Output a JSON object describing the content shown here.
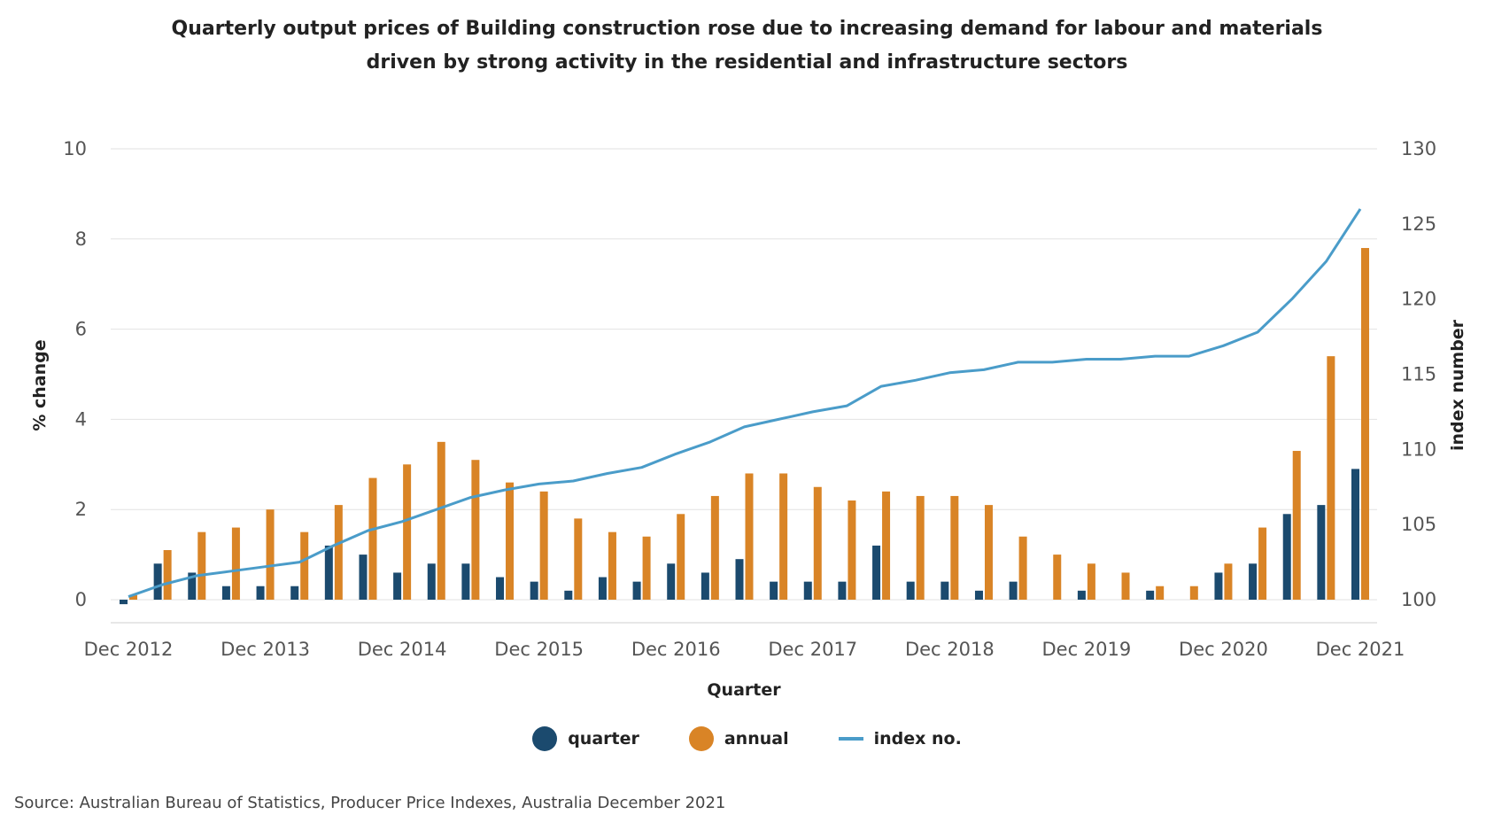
{
  "colors": {
    "quarter": "#1b4a6e",
    "annual": "#d98426",
    "index": "#4a9cc9",
    "grid": "#e2e2e2",
    "axis_text": "#555555"
  },
  "legend": {
    "quarter": "quarter",
    "annual": "annual",
    "index": "index no."
  },
  "source": "Source: Australian Bureau of Statistics, Producer Price Indexes, Australia December 2021",
  "chart_data": {
    "type": "bar",
    "title_line1": "Quarterly output prices of Building construction rose due to increasing demand for labour and materials",
    "title_line2": "driven by strong activity in the residential and infrastructure sectors",
    "xlabel": "Quarter",
    "ylabel": "% change",
    "y2label": "index number",
    "ylim": [
      0,
      10
    ],
    "yticks": [
      "0",
      "2",
      "4",
      "6",
      "8",
      "10"
    ],
    "y2lim": [
      100,
      130
    ],
    "y2ticks": [
      "100",
      "105",
      "110",
      "115",
      "120",
      "125",
      "130"
    ],
    "grid": true,
    "legend_position": "bottom",
    "categories": [
      "Dec 2012",
      "Mar 2013",
      "Jun 2013",
      "Sep 2013",
      "Dec 2013",
      "Mar 2014",
      "Jun 2014",
      "Sep 2014",
      "Dec 2014",
      "Mar 2015",
      "Jun 2015",
      "Sep 2015",
      "Dec 2015",
      "Mar 2016",
      "Jun 2016",
      "Sep 2016",
      "Dec 2016",
      "Mar 2017",
      "Jun 2017",
      "Sep 2017",
      "Dec 2017",
      "Mar 2018",
      "Jun 2018",
      "Sep 2018",
      "Dec 2018",
      "Mar 2019",
      "Jun 2019",
      "Sep 2019",
      "Dec 2019",
      "Mar 2020",
      "Jun 2020",
      "Sep 2020",
      "Dec 2020",
      "Mar 2021",
      "Jun 2021",
      "Sep 2021",
      "Dec 2021"
    ],
    "xtick_labels": [
      "Dec 2012",
      "Dec 2013",
      "Dec 2014",
      "Dec 2015",
      "Dec 2016",
      "Dec 2017",
      "Dec 2018",
      "Dec 2019",
      "Dec 2020",
      "Dec 2021"
    ],
    "series": [
      {
        "name": "quarter",
        "kind": "bar",
        "axis": "left",
        "values": [
          -0.1,
          0.8,
          0.6,
          0.3,
          0.3,
          0.3,
          1.2,
          1.0,
          0.6,
          0.8,
          0.8,
          0.5,
          0.4,
          0.2,
          0.5,
          0.4,
          0.8,
          0.6,
          0.9,
          0.4,
          0.4,
          0.4,
          1.2,
          0.4,
          0.4,
          0.2,
          0.4,
          0.0,
          0.2,
          0.0,
          0.2,
          0.0,
          0.6,
          0.8,
          1.9,
          2.1,
          2.9
        ]
      },
      {
        "name": "annual",
        "kind": "bar",
        "axis": "left",
        "values": [
          0.1,
          1.1,
          1.5,
          1.6,
          2.0,
          1.5,
          2.1,
          2.7,
          3.0,
          3.5,
          3.1,
          2.6,
          2.4,
          1.8,
          1.5,
          1.4,
          1.9,
          2.3,
          2.8,
          2.8,
          2.5,
          2.2,
          2.4,
          2.3,
          2.3,
          2.1,
          1.4,
          1.0,
          0.8,
          0.6,
          0.3,
          0.3,
          0.8,
          1.6,
          3.3,
          5.4,
          7.8
        ]
      },
      {
        "name": "index no.",
        "kind": "line",
        "axis": "right",
        "values": [
          100.2,
          101.0,
          101.6,
          101.9,
          102.2,
          102.5,
          103.6,
          104.6,
          105.2,
          106.0,
          106.8,
          107.3,
          107.7,
          107.9,
          108.4,
          108.8,
          109.7,
          110.5,
          111.5,
          112.0,
          112.5,
          112.9,
          114.2,
          114.6,
          115.1,
          115.3,
          115.8,
          115.8,
          116.0,
          116.0,
          116.2,
          116.2,
          116.9,
          117.8,
          120.0,
          122.5,
          126.0
        ]
      }
    ]
  }
}
